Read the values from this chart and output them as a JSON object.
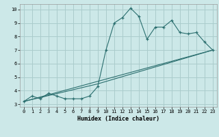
{
  "xlabel": "Humidex (Indice chaleur)",
  "bg_color": "#cce8e8",
  "grid_color": "#aacccc",
  "line_color": "#2a6e6e",
  "xlim": [
    -0.5,
    23.5
  ],
  "ylim": [
    2.8,
    10.4
  ],
  "xticks": [
    0,
    1,
    2,
    3,
    4,
    5,
    6,
    7,
    8,
    9,
    10,
    11,
    12,
    13,
    14,
    15,
    16,
    17,
    18,
    19,
    20,
    21,
    22,
    23
  ],
  "yticks": [
    3,
    4,
    5,
    6,
    7,
    8,
    9,
    10
  ],
  "main_x": [
    0,
    1,
    2,
    3,
    4,
    5,
    6,
    7,
    8,
    9,
    10,
    11,
    12,
    13,
    14,
    15,
    16,
    17,
    18,
    19,
    20,
    21,
    22,
    23
  ],
  "main_y": [
    3.2,
    3.6,
    3.4,
    3.8,
    3.6,
    3.4,
    3.4,
    3.4,
    3.6,
    4.3,
    7.0,
    9.0,
    9.4,
    10.1,
    9.5,
    7.8,
    8.7,
    8.7,
    9.2,
    8.3,
    8.2,
    8.3,
    7.6,
    7.0
  ],
  "trend1_x": [
    0,
    23
  ],
  "trend1_y": [
    3.2,
    7.0
  ],
  "trend2_x": [
    0,
    9,
    23
  ],
  "trend2_y": [
    3.2,
    4.5,
    7.0
  ],
  "xlabel_fontsize": 6.0,
  "tick_fontsize": 5.0
}
